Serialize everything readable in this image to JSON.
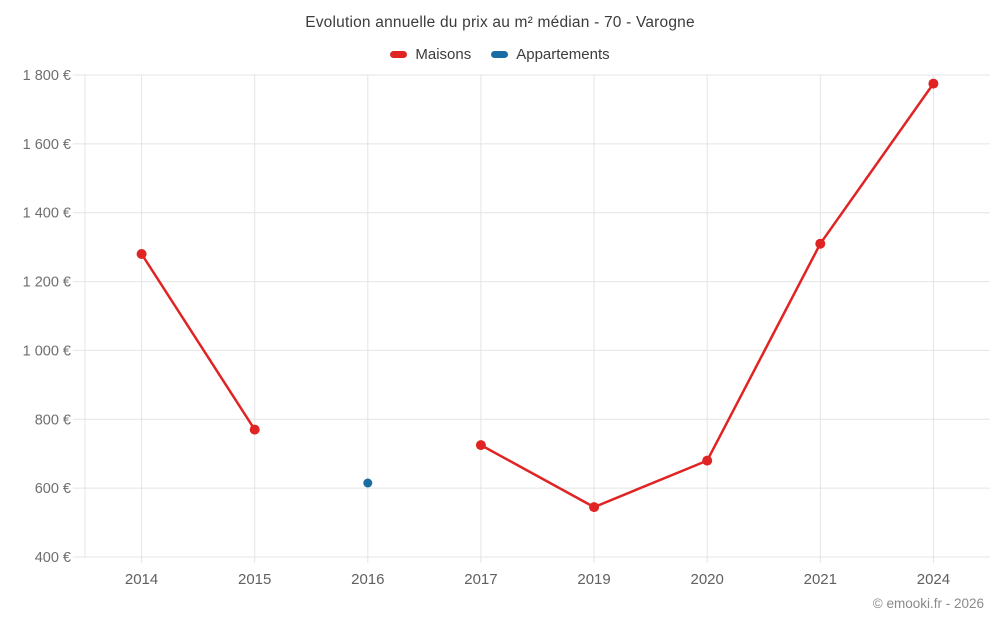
{
  "chart": {
    "title": "Evolution annuelle du prix au m² médian - 70 - Varogne",
    "source": "© emooki.fr - 2026"
  },
  "chart_data": {
    "type": "line",
    "title": "Evolution annuelle du prix au m² médian - 70 - Varogne",
    "categories": [
      "2014",
      "2015",
      "2016",
      "2017",
      "2019",
      "2020",
      "2021",
      "2024"
    ],
    "series": [
      {
        "name": "Maisons",
        "color": "#e02424",
        "point_radius": 5,
        "values": [
          1280,
          770,
          null,
          725,
          545,
          680,
          1310,
          1775
        ]
      },
      {
        "name": "Appartements",
        "color": "#1a6da3",
        "point_radius": 4.5,
        "values": [
          null,
          null,
          615,
          null,
          null,
          null,
          null,
          null
        ]
      }
    ],
    "xlabel": "",
    "ylabel": "",
    "ylim": [
      400,
      1800
    ],
    "y_ticks": [
      {
        "value": 400,
        "label": "400 €"
      },
      {
        "value": 600,
        "label": "600 €"
      },
      {
        "value": 800,
        "label": "800 €"
      },
      {
        "value": 1000,
        "label": "1 000 €"
      },
      {
        "value": 1200,
        "label": "1 200 €"
      },
      {
        "value": 1400,
        "label": "1 400 €"
      },
      {
        "value": 1600,
        "label": "1 600 €"
      },
      {
        "value": 1800,
        "label": "1 800 €"
      }
    ],
    "grid": true,
    "legend_position": "top",
    "source": "© emooki.fr - 2026"
  }
}
